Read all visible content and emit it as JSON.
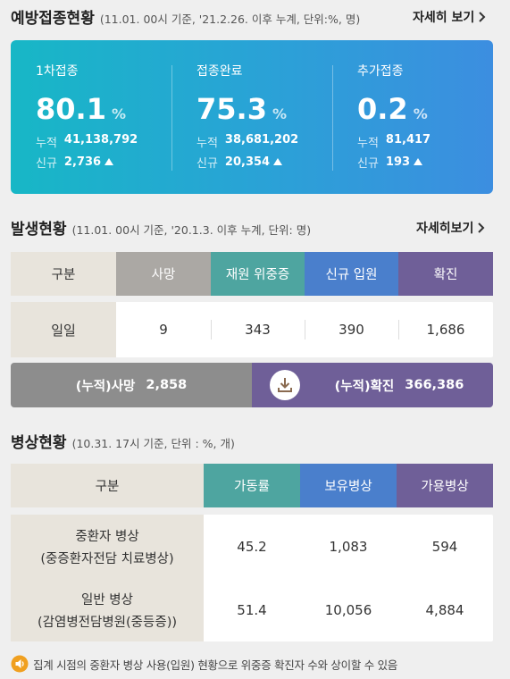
{
  "vaccination": {
    "title": "예방접종현황",
    "subtitle": "(11.01. 00시 기준, '21.2.26. 이후 누계, 단위:%, 명)",
    "more": "자세히 보기",
    "items": [
      {
        "label": "1차접종",
        "rate": "80.1",
        "unit": "%",
        "total_label": "누적",
        "total": "41,138,792",
        "new_label": "신규",
        "new": "2,736"
      },
      {
        "label": "접종완료",
        "rate": "75.3",
        "unit": "%",
        "total_label": "누적",
        "total": "38,681,202",
        "new_label": "신규",
        "new": "20,354"
      },
      {
        "label": "추가접종",
        "rate": "0.2",
        "unit": "%",
        "total_label": "누적",
        "total": "81,417",
        "new_label": "신규",
        "new": "193"
      }
    ]
  },
  "occurrence": {
    "title": "발생현황",
    "subtitle": "(11.01. 00시 기준, '20.1.3. 이후 누계, 단위: 명)",
    "more": "자세히보기",
    "headers": [
      "구분",
      "사망",
      "재원 위중증",
      "신규 입원",
      "확진"
    ],
    "rows": [
      [
        "일일",
        "9",
        "343",
        "390",
        "1,686"
      ]
    ],
    "cumulative": [
      {
        "label": "(누적)사망",
        "value": "2,858"
      },
      {
        "label": "(누적)확진",
        "value": "366,386"
      }
    ]
  },
  "beds": {
    "title": "병상현황",
    "subtitle": "(10.31. 17시 기준, 단위 : %, 개)",
    "headers": [
      "구분",
      "가동률",
      "보유병상",
      "가용병상"
    ],
    "rows": [
      [
        [
          "중환자 병상",
          "(중증환자전담 치료병상)"
        ],
        "45.2",
        "1,083",
        "594"
      ],
      [
        [
          "일반 병상",
          "(감염병전담병원(중등증))"
        ],
        "51.4",
        "10,056",
        "4,884"
      ]
    ]
  },
  "notice": "집계 시점의 중환자 병상 사용(입원) 현황으로 위중증 확진자 수와 상이할 수 있음"
}
